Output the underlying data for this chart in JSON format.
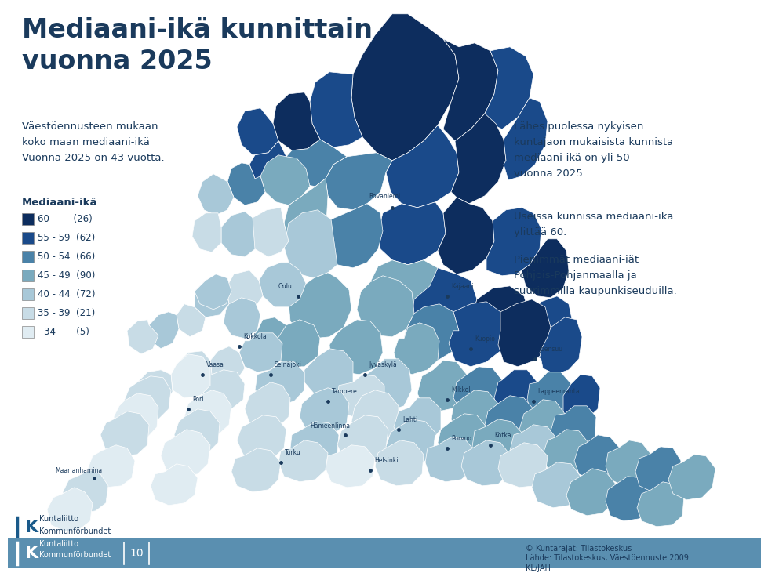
{
  "title_line1": "Mediaani-ikä kunnittain",
  "title_line2": "vuonna 2025",
  "title_color": "#1a3a5c",
  "background_color": "#ffffff",
  "subtitle_text": "Väestöennusteen mukaan\nkoko maan mediaani-ikä\nVuonna 2025 on 43 vuotta.",
  "legend_title": "Mediaani-ikä",
  "legend_items": [
    {
      "label": "60 -      (26)",
      "color": "#0d2d5e"
    },
    {
      "label": "55 - 59  (62)",
      "color": "#1a4a8a"
    },
    {
      "label": "50 - 54  (66)",
      "color": "#4a82a8"
    },
    {
      "label": "45 - 49  (90)",
      "color": "#7aaabe"
    },
    {
      "label": "40 - 44  (72)",
      "color": "#a8c8d8"
    },
    {
      "label": "35 - 39  (21)",
      "color": "#c8dce6"
    },
    {
      "label": "- 34       (5)",
      "color": "#e0ecf2"
    }
  ],
  "right_text_1": "Lähes puolessa nykyisen\nkuntajaon mukaisista kunnista\nmediaani-ikä on yli 50\nvuonna 2025.",
  "right_text_2": "Useissa kunnissa mediaani-ikä\nylittää 60.",
  "right_text_3": "Pienimmät mediaani-iät\nPohjois-Pohjanmaalla ja\nsuurimmilla kaupunkiseuduilla.",
  "footer_page": "10",
  "footer_right_1": "© Kuntarajat: Tilastokeskus",
  "footer_right_2": "Lähde: Tilastokeskus, Väestöennuste 2009\nKL/JAH",
  "text_color": "#1a3a5c",
  "footer_bar_color": "#5a8fb0",
  "map_colors": [
    "#0d2d5e",
    "#1a4a8a",
    "#4a82a8",
    "#7aaabe",
    "#a8c8d8",
    "#c8dce6",
    "#e0ecf2"
  ]
}
